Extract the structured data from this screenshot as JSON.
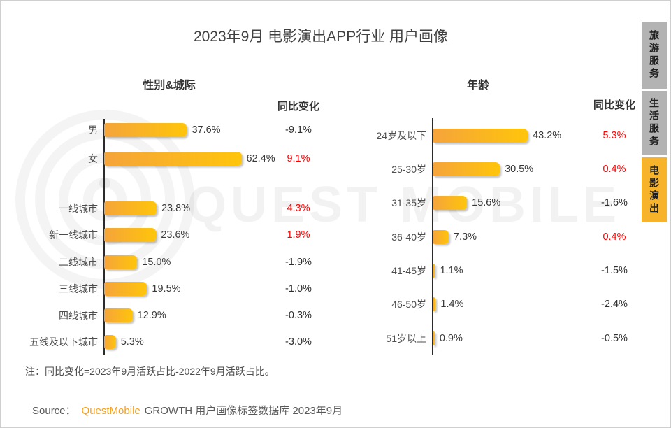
{
  "title": "2023年9月 电影演出APP行业 用户画像",
  "sections": {
    "left": {
      "title": "性别&城际",
      "change_header": "同比变化"
    },
    "right": {
      "title": "年龄",
      "change_header": "同比变化"
    }
  },
  "chart_data": [
    {
      "type": "bar",
      "orientation": "horizontal",
      "title": "性别&城际",
      "unit": "%",
      "categories": [
        "男",
        "女",
        "一线城市",
        "新一线城市",
        "二线城市",
        "三线城市",
        "四线城市",
        "五线及以下城市"
      ],
      "values": [
        37.6,
        62.4,
        23.8,
        23.6,
        15.0,
        19.5,
        12.9,
        5.3
      ],
      "yoy_change": [
        -9.1,
        9.1,
        4.3,
        1.9,
        -1.9,
        -1.0,
        -0.3,
        -3.0
      ],
      "yoy_change_label": "同比变化",
      "positive_change_shown_in_red": true,
      "groups": [
        [
          "男",
          "女"
        ],
        [
          "一线城市",
          "新一线城市",
          "二线城市",
          "三线城市",
          "四线城市",
          "五线及以下城市"
        ]
      ]
    },
    {
      "type": "bar",
      "orientation": "horizontal",
      "title": "年龄",
      "unit": "%",
      "categories": [
        "24岁及以下",
        "25-30岁",
        "31-35岁",
        "36-40岁",
        "41-45岁",
        "46-50岁",
        "51岁以上"
      ],
      "values": [
        43.2,
        30.5,
        15.6,
        7.3,
        1.1,
        1.4,
        0.9
      ],
      "yoy_change": [
        5.3,
        0.4,
        -1.6,
        0.4,
        -1.5,
        -2.4,
        -0.5
      ],
      "yoy_change_label": "同比变化",
      "positive_change_shown_in_red": true
    }
  ],
  "note": "注：同比变化=2023年9月活跃占比-2022年9月活跃占比。",
  "source": {
    "label": "Source：",
    "brand": "QuestMobile",
    "rest": "GROWTH 用户画像标签数据库 2023年9月"
  },
  "sidebar": {
    "tabs": [
      {
        "label": "旅游服务",
        "active": false
      },
      {
        "label": "生活服务",
        "active": false
      },
      {
        "label": "电影演出",
        "active": true
      }
    ]
  },
  "watermark_text": "QUEST MOBILE",
  "colors": {
    "bar_gradient_start": "#F5A43B",
    "bar_gradient_end": "#FFC50A",
    "positive_change_red": "#FE0000",
    "tab_inactive_gray": "#B3B3B3",
    "tab_active_orange": "#F7B42B",
    "brand_orange": "#F8A01E"
  }
}
